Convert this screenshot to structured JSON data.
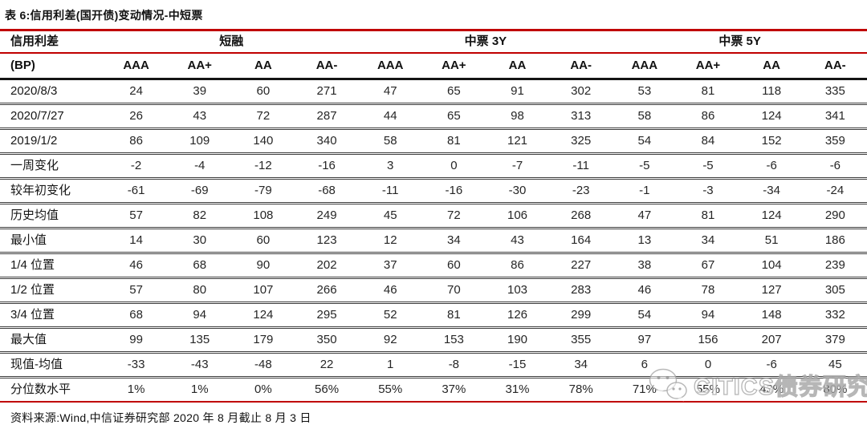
{
  "title": "表 6:信用利差(国开债)变动情况-中短票",
  "table": {
    "corner_label": "信用利差",
    "corner_sublabel": "(BP)",
    "unit": "BP",
    "groups": [
      {
        "label": "短融",
        "span": 4
      },
      {
        "label": "中票 3Y",
        "span": 4
      },
      {
        "label": "中票 5Y",
        "span": 4
      }
    ],
    "col_headers": [
      "AAA",
      "AA+",
      "AA",
      "AA-",
      "AAA",
      "AA+",
      "AA",
      "AA-",
      "AAA",
      "AA+",
      "AA",
      "AA-"
    ],
    "rows": [
      {
        "label": "2020/8/3",
        "values": [
          "24",
          "39",
          "60",
          "271",
          "47",
          "65",
          "91",
          "302",
          "53",
          "81",
          "118",
          "335"
        ]
      },
      {
        "label": "2020/7/27",
        "values": [
          "26",
          "43",
          "72",
          "287",
          "44",
          "65",
          "98",
          "313",
          "58",
          "86",
          "124",
          "341"
        ]
      },
      {
        "label": "2019/1/2",
        "values": [
          "86",
          "109",
          "140",
          "340",
          "58",
          "81",
          "121",
          "325",
          "54",
          "84",
          "152",
          "359"
        ]
      },
      {
        "label": "一周变化",
        "values": [
          "-2",
          "-4",
          "-12",
          "-16",
          "3",
          "0",
          "-7",
          "-11",
          "-5",
          "-5",
          "-6",
          "-6"
        ]
      },
      {
        "label": "较年初变化",
        "values": [
          "-61",
          "-69",
          "-79",
          "-68",
          "-11",
          "-16",
          "-30",
          "-23",
          "-1",
          "-3",
          "-34",
          "-24"
        ]
      },
      {
        "label": "历史均值",
        "values": [
          "57",
          "82",
          "108",
          "249",
          "45",
          "72",
          "106",
          "268",
          "47",
          "81",
          "124",
          "290"
        ]
      },
      {
        "label": "最小值",
        "values": [
          "14",
          "30",
          "60",
          "123",
          "12",
          "34",
          "43",
          "164",
          "13",
          "34",
          "51",
          "186"
        ]
      },
      {
        "label": "1/4 位置",
        "values": [
          "46",
          "68",
          "90",
          "202",
          "37",
          "60",
          "86",
          "227",
          "38",
          "67",
          "104",
          "239"
        ]
      },
      {
        "label": "1/2 位置",
        "values": [
          "57",
          "80",
          "107",
          "266",
          "46",
          "70",
          "103",
          "283",
          "46",
          "78",
          "127",
          "305"
        ]
      },
      {
        "label": "3/4 位置",
        "values": [
          "68",
          "94",
          "124",
          "295",
          "52",
          "81",
          "126",
          "299",
          "54",
          "94",
          "148",
          "332"
        ]
      },
      {
        "label": "最大值",
        "values": [
          "99",
          "135",
          "179",
          "350",
          "92",
          "153",
          "190",
          "355",
          "97",
          "156",
          "207",
          "379"
        ]
      },
      {
        "label": "现值-均值",
        "values": [
          "-33",
          "-43",
          "-48",
          "22",
          "1",
          "-8",
          "-15",
          "34",
          "6",
          "0",
          "-6",
          "45"
        ]
      },
      {
        "label": "分位数水平",
        "values": [
          "1%",
          "1%",
          "0%",
          "56%",
          "55%",
          "37%",
          "31%",
          "78%",
          "71%",
          "55%",
          "43%",
          "80%"
        ]
      }
    ]
  },
  "footer": {
    "source_text": "资料来源:Wind,中信证券研究部 2020 年 8 月截止 8 月 3 日"
  },
  "watermark": {
    "text": "CITICS债券研究",
    "icon": "wechat-icon"
  },
  "colors": {
    "accent_red": "#c00000",
    "header_line_black": "#141414",
    "row_line": "#3d3d3d",
    "text": "#1f1f1f",
    "watermark_gray": "#969696"
  }
}
